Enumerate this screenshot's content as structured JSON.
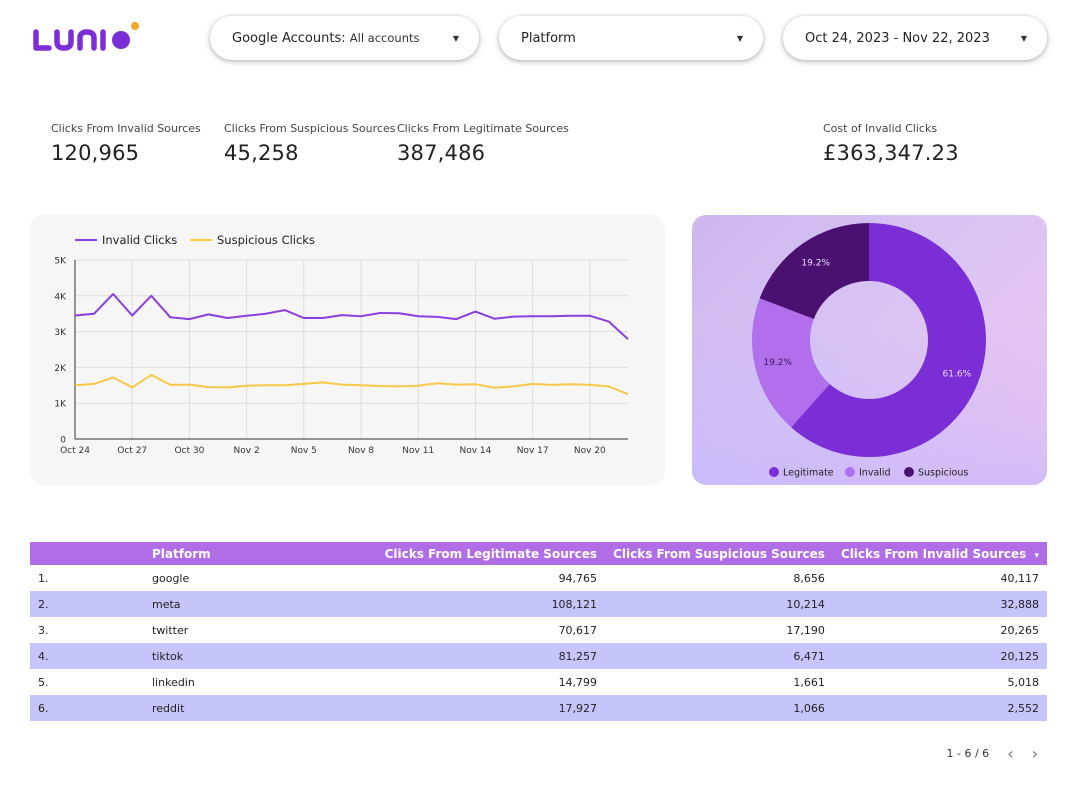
{
  "brand": {
    "logo_text": "LUNIO",
    "colors": {
      "purple": "#7b2ed6",
      "dot": "#f5a623"
    }
  },
  "filters": {
    "accounts": {
      "label": "Google Accounts:",
      "value": "All accounts"
    },
    "platform": {
      "label": "Platform"
    },
    "date_range": {
      "label": "Oct 24, 2023 - Nov 22, 2023"
    }
  },
  "kpis": [
    {
      "title": "Clicks From Invalid Sources",
      "value": "120,965"
    },
    {
      "title": "Clicks From Suspicious Sources",
      "value": "45,258"
    },
    {
      "title": "Clicks From Legitimate Sources",
      "value": "387,486"
    },
    {
      "title": "Cost of Invalid Clicks",
      "value": "£363,347.23"
    }
  ],
  "chart_data": [
    {
      "type": "line",
      "legend": [
        "Invalid Clicks",
        "Suspicious Clicks"
      ],
      "ylim": [
        0,
        5000
      ],
      "y_ticks": [
        "0",
        "1K",
        "2K",
        "3K",
        "4K",
        "5K"
      ],
      "x_tick_labels": [
        "Oct 24",
        "Oct 27",
        "Oct 30",
        "Nov 2",
        "Nov 5",
        "Nov 8",
        "Nov 11",
        "Nov 14",
        "Nov 17",
        "Nov 20"
      ],
      "x": [
        "Oct 24",
        "Oct 25",
        "Oct 26",
        "Oct 27",
        "Oct 28",
        "Oct 29",
        "Oct 30",
        "Oct 31",
        "Nov 1",
        "Nov 2",
        "Nov 3",
        "Nov 4",
        "Nov 5",
        "Nov 6",
        "Nov 7",
        "Nov 8",
        "Nov 9",
        "Nov 10",
        "Nov 11",
        "Nov 12",
        "Nov 13",
        "Nov 14",
        "Nov 15",
        "Nov 16",
        "Nov 17",
        "Nov 18",
        "Nov 19",
        "Nov 20",
        "Nov 21",
        "Nov 22"
      ],
      "series": [
        {
          "name": "Invalid Clicks",
          "color": "#8a3fe0",
          "values": [
            3450,
            3500,
            4050,
            3450,
            4000,
            3400,
            3350,
            3480,
            3380,
            3440,
            3500,
            3600,
            3380,
            3380,
            3460,
            3430,
            3520,
            3510,
            3430,
            3410,
            3350,
            3560,
            3360,
            3420,
            3430,
            3430,
            3440,
            3440,
            3280,
            2790
          ]
        },
        {
          "name": "Suspicious Clicks",
          "color": "#f7c948",
          "values": [
            1500,
            1540,
            1720,
            1440,
            1790,
            1510,
            1520,
            1450,
            1440,
            1490,
            1500,
            1500,
            1540,
            1580,
            1520,
            1500,
            1480,
            1470,
            1490,
            1560,
            1520,
            1530,
            1430,
            1470,
            1540,
            1510,
            1530,
            1510,
            1470,
            1250
          ]
        }
      ]
    },
    {
      "type": "pie",
      "legend": [
        "Legitimate",
        "Invalid",
        "Suspicious"
      ],
      "categories": [
        "Legitimate",
        "Invalid",
        "Suspicious"
      ],
      "values": [
        61.6,
        19.2,
        19.2
      ],
      "labels": [
        "61.6%",
        "19.2%",
        "19.2%"
      ],
      "colors": [
        "#7b2ed6",
        "#b16fee",
        "#4a1170"
      ]
    }
  ],
  "table": {
    "headers": [
      "",
      "Platform",
      "Clicks From Legitimate Sources",
      "Clicks From Suspicious Sources",
      "Clicks From Invalid Sources"
    ],
    "sort_indicator": "▾",
    "rows": [
      [
        "1.",
        "google",
        "94,765",
        "8,656",
        "40,117"
      ],
      [
        "2.",
        "meta",
        "108,121",
        "10,214",
        "32,888"
      ],
      [
        "3.",
        "twitter",
        "70,617",
        "17,190",
        "20,265"
      ],
      [
        "4.",
        "tiktok",
        "81,257",
        "6,471",
        "20,125"
      ],
      [
        "5.",
        "linkedin",
        "14,799",
        "1,661",
        "5,018"
      ],
      [
        "6.",
        "reddit",
        "17,927",
        "1,066",
        "2,552"
      ]
    ]
  },
  "pagination": {
    "label": "1 - 6 / 6",
    "prev": "‹",
    "next": "›"
  }
}
